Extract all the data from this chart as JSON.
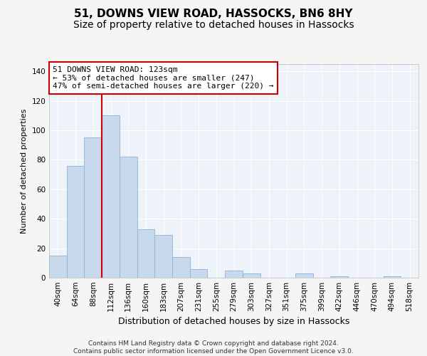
{
  "title": "51, DOWNS VIEW ROAD, HASSOCKS, BN6 8HY",
  "subtitle": "Size of property relative to detached houses in Hassocks",
  "xlabel": "Distribution of detached houses by size in Hassocks",
  "ylabel": "Number of detached properties",
  "bar_labels": [
    "40sqm",
    "64sqm",
    "88sqm",
    "112sqm",
    "136sqm",
    "160sqm",
    "183sqm",
    "207sqm",
    "231sqm",
    "255sqm",
    "279sqm",
    "303sqm",
    "327sqm",
    "351sqm",
    "375sqm",
    "399sqm",
    "422sqm",
    "446sqm",
    "470sqm",
    "494sqm",
    "518sqm"
  ],
  "bar_heights": [
    15,
    76,
    95,
    110,
    82,
    33,
    29,
    14,
    6,
    0,
    5,
    3,
    0,
    0,
    3,
    0,
    1,
    0,
    0,
    1,
    0
  ],
  "bar_color": "#c9d9ed",
  "bar_edge_color": "#8ab4d4",
  "vline_x_index": 3,
  "vline_color": "#cc0000",
  "annotation_text": "51 DOWNS VIEW ROAD: 123sqm\n← 53% of detached houses are smaller (247)\n47% of semi-detached houses are larger (220) →",
  "annotation_box_facecolor": "#ffffff",
  "annotation_box_edgecolor": "#cc0000",
  "ylim": [
    0,
    145
  ],
  "yticks": [
    0,
    20,
    40,
    60,
    80,
    100,
    120,
    140
  ],
  "bg_color": "#eef2f9",
  "grid_color": "#ffffff",
  "fig_facecolor": "#f5f5f5",
  "footer_text": "Contains HM Land Registry data © Crown copyright and database right 2024.\nContains public sector information licensed under the Open Government Licence v3.0.",
  "title_fontsize": 11,
  "subtitle_fontsize": 10,
  "xlabel_fontsize": 9,
  "ylabel_fontsize": 8,
  "tick_fontsize": 7.5,
  "annotation_fontsize": 8,
  "footer_fontsize": 6.5
}
